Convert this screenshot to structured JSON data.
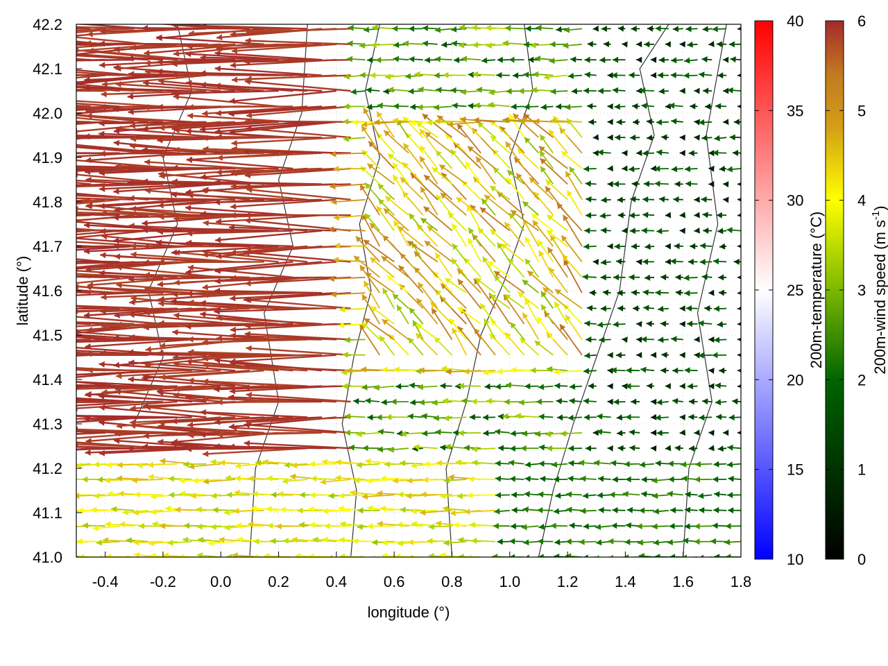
{
  "chart_data": {
    "type": "vector-field",
    "title": "",
    "xlabel": "longitude (°)",
    "ylabel": "latitude (°)",
    "xlim": [
      -0.5,
      1.8
    ],
    "ylim": [
      41.0,
      42.2
    ],
    "x_ticks": [
      -0.4,
      -0.2,
      0.0,
      0.2,
      0.4,
      0.6,
      0.8,
      1.0,
      1.2,
      1.4,
      1.6,
      1.8
    ],
    "x_tick_labels": [
      "-0.4",
      "-0.2",
      "0.0",
      "0.2",
      "0.4",
      "0.6",
      "0.8",
      "1.0",
      "1.2",
      "1.4",
      "1.6",
      "1.8"
    ],
    "y_ticks": [
      41.0,
      41.1,
      41.2,
      41.3,
      41.4,
      41.5,
      41.6,
      41.7,
      41.8,
      41.9,
      42.0,
      42.1,
      42.2
    ],
    "y_tick_labels": [
      "41.0",
      "41.1",
      "41.2",
      "41.3",
      "41.4",
      "41.5",
      "41.6",
      "41.7",
      "41.8",
      "41.9",
      "42.0",
      "42.1",
      "42.2"
    ],
    "grid": true,
    "colorbars": [
      {
        "name": "temperature",
        "label": "200m-temperature (°C)",
        "range": [
          10,
          40
        ],
        "ticks": [
          10,
          15,
          20,
          25,
          30,
          35,
          40
        ],
        "tick_labels": [
          "10",
          "15",
          "20",
          "25",
          "30",
          "35",
          "40"
        ],
        "colors": [
          "#0000ff",
          "#ffffff",
          "#ff0000"
        ]
      },
      {
        "name": "wind_speed",
        "label": "200m-wind speed (m s",
        "label_superscript": "-1",
        "label_suffix": ")",
        "range": [
          0,
          6
        ],
        "ticks": [
          0,
          1,
          2,
          3,
          4,
          5,
          6
        ],
        "tick_labels": [
          "0",
          "1",
          "2",
          "3",
          "4",
          "5",
          "6"
        ],
        "colors": [
          "#000000",
          "#006400",
          "#7cb800",
          "#ffff00",
          "#d4a017",
          "#c27a20",
          "#a52a2a"
        ]
      }
    ],
    "field_regions": [
      {
        "name": "strong-westward-flow",
        "lon_range": [
          -0.5,
          0.55
        ],
        "lat_range": [
          41.25,
          42.2
        ],
        "speed_ms": 6,
        "direction": "westward"
      },
      {
        "name": "transition-zone",
        "lon_range": [
          0.4,
          1.4
        ],
        "lat_range": [
          41.4,
          42.0
        ],
        "speed_ms": 3.5,
        "direction": "west-northwest"
      },
      {
        "name": "weak-eastern-flow",
        "lon_range": [
          1.0,
          1.8
        ],
        "lat_range": [
          41.0,
          42.2
        ],
        "speed_ms": 1,
        "direction": "westward"
      },
      {
        "name": "southern-westward-flow",
        "lon_range": [
          -0.5,
          1.4
        ],
        "lat_range": [
          41.0,
          41.25
        ],
        "speed_ms": 3,
        "direction": "westward"
      }
    ],
    "contours": [
      {
        "name": "contour-1",
        "points": [
          [
            0.45,
            41.0
          ],
          [
            0.47,
            41.15
          ],
          [
            0.42,
            41.3
          ],
          [
            0.46,
            41.45
          ],
          [
            0.52,
            41.6
          ],
          [
            0.48,
            41.75
          ],
          [
            0.55,
            41.9
          ],
          [
            0.5,
            42.05
          ],
          [
            0.55,
            42.2
          ]
        ]
      },
      {
        "name": "contour-2",
        "points": [
          [
            0.8,
            41.0
          ],
          [
            0.78,
            41.2
          ],
          [
            0.85,
            41.35
          ],
          [
            0.9,
            41.5
          ],
          [
            0.98,
            41.62
          ],
          [
            1.05,
            41.75
          ],
          [
            1.0,
            41.9
          ],
          [
            1.08,
            42.05
          ],
          [
            1.05,
            42.2
          ]
        ]
      },
      {
        "name": "contour-3",
        "points": [
          [
            1.1,
            41.0
          ],
          [
            1.15,
            41.15
          ],
          [
            1.22,
            41.3
          ],
          [
            1.3,
            41.45
          ],
          [
            1.38,
            41.6
          ],
          [
            1.42,
            41.8
          ],
          [
            1.5,
            41.95
          ],
          [
            1.45,
            42.1
          ],
          [
            1.55,
            42.2
          ]
        ]
      },
      {
        "name": "contour-4",
        "points": [
          [
            -0.3,
            41.3
          ],
          [
            -0.2,
            41.45
          ],
          [
            -0.25,
            41.6
          ],
          [
            -0.15,
            41.75
          ],
          [
            -0.2,
            41.9
          ],
          [
            -0.1,
            42.05
          ],
          [
            -0.15,
            42.2
          ]
        ]
      },
      {
        "name": "contour-5",
        "points": [
          [
            0.1,
            41.0
          ],
          [
            0.12,
            41.2
          ],
          [
            0.2,
            41.35
          ],
          [
            0.15,
            41.55
          ],
          [
            0.25,
            41.7
          ],
          [
            0.2,
            41.85
          ],
          [
            0.28,
            42.0
          ],
          [
            0.3,
            42.2
          ]
        ]
      },
      {
        "name": "contour-6",
        "points": [
          [
            1.6,
            41.0
          ],
          [
            1.62,
            41.2
          ],
          [
            1.7,
            41.35
          ],
          [
            1.65,
            41.55
          ],
          [
            1.72,
            41.75
          ],
          [
            1.68,
            41.95
          ],
          [
            1.75,
            42.2
          ]
        ]
      }
    ]
  }
}
